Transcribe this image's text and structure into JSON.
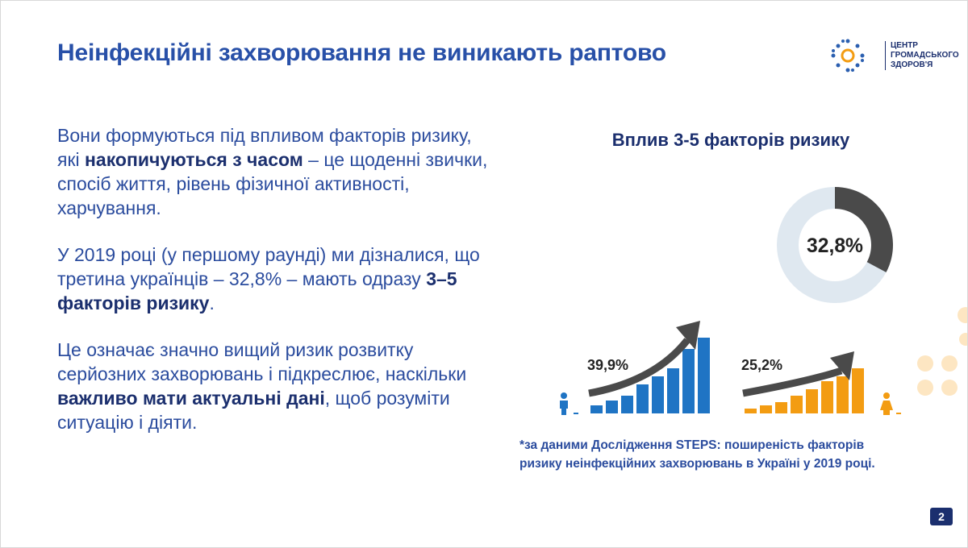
{
  "header": {
    "title": "Неінфекційні захворювання не виникають раптово",
    "logo_lines": [
      "ЦЕНТР",
      "ГРОМАДСЬКОГО",
      "ЗДОРОВ'Я"
    ]
  },
  "body": {
    "paragraphs": [
      [
        {
          "text": "Вони формуються під впливом факторів ризику, які ",
          "bold": false
        },
        {
          "text": "накопичуються з часом",
          "bold": true
        },
        {
          "text": " – це щоденні звички, спосіб життя, рівень фізичної активності, харчування.",
          "bold": false
        }
      ],
      [
        {
          "text": "У 2019 році (у першому раунді) ми дізналися, що третина українців – 32,8% – мають одразу ",
          "bold": false
        },
        {
          "text": "3–5 факторів ризику",
          "bold": true
        },
        {
          "text": ".",
          "bold": false
        }
      ],
      [
        {
          "text": "Це означає значно вищий ризик розвитку серйозних захворювань і підкреслює, наскільки ",
          "bold": false
        },
        {
          "text": "важливо мати актуальні дані",
          "bold": true
        },
        {
          "text": ", щоб розуміти ситуацію і діяти.",
          "bold": false
        }
      ]
    ]
  },
  "infographic": {
    "title": "Вплив 3-5 факторів ризику",
    "donut": {
      "value": 32.8,
      "label": "32,8%",
      "color": "#4a4a4a",
      "track_color": "#dfe8f0"
    },
    "men": {
      "label": "39,9%",
      "color": "#1f74c4"
    },
    "women": {
      "label": "25,2%",
      "color": "#f39c12"
    },
    "footnote": [
      "*за даними Дослідження STEPS: поширеність факторів",
      "ризику неінфекційних захворювань в Україні у 2019 році."
    ]
  },
  "footer": {
    "page": "2"
  }
}
